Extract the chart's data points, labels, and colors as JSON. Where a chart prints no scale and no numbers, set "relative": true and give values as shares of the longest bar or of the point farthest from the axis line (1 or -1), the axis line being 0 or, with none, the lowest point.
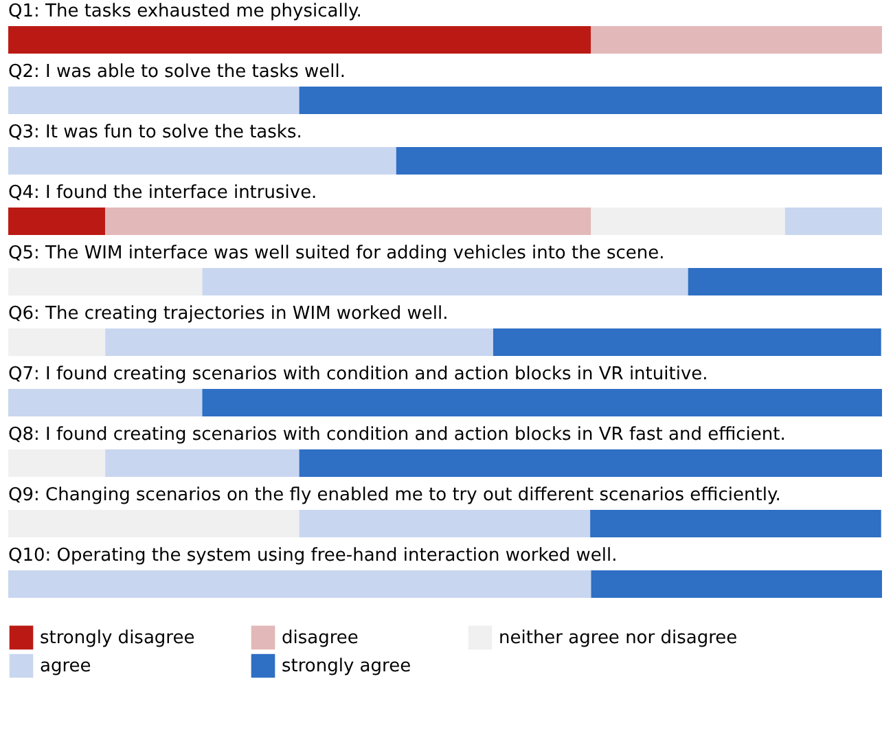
{
  "chart_data": {
    "type": "bar",
    "orientation": "horizontal",
    "stacked": true,
    "relative": true,
    "legend": "bottom",
    "categories": [
      "Q1: The tasks exhausted me physically.",
      "Q2: I was able to solve the tasks well.",
      "Q3: It was fun to solve the tasks.",
      "Q4: I found the interface intrusive.",
      "Q5: The WIM interface was well suited for adding vehicles into the scene.",
      "Q6: The creating trajectories in WIM worked well.",
      "Q7: I found creating scenarios with condition and action blocks in VR intuitive.",
      "Q8: I found creating scenarios with condition and action blocks in VR fast and efficient.",
      "Q9: Changing scenarios on the fly enabled me to try out different scenarios efficiently.",
      "Q10: Operating the system using free-hand interaction worked well."
    ],
    "series": [
      {
        "name": "strongly disagree",
        "color": "#bb1a14",
        "values": [
          0.667,
          null,
          null,
          0.111,
          null,
          null,
          null,
          null,
          null,
          null
        ]
      },
      {
        "name": "disagree",
        "color": "#e3b8b8",
        "values": [
          0.333,
          null,
          null,
          0.556,
          null,
          null,
          null,
          null,
          null,
          null
        ]
      },
      {
        "name": "neither agree nor disagree",
        "color": "#f0f0f0",
        "values": [
          null,
          null,
          null,
          0.222,
          0.222,
          0.111,
          null,
          0.111,
          0.333,
          null
        ]
      },
      {
        "name": "agree",
        "color": "#c9d6f0",
        "values": [
          null,
          0.333,
          0.444,
          0.111,
          0.556,
          0.444,
          0.222,
          0.222,
          0.333,
          0.667
        ]
      },
      {
        "name": "strongly agree",
        "color": "#2f6fc4",
        "values": [
          null,
          0.667,
          0.556,
          null,
          0.222,
          0.444,
          0.778,
          0.667,
          0.333,
          0.333
        ]
      }
    ]
  }
}
